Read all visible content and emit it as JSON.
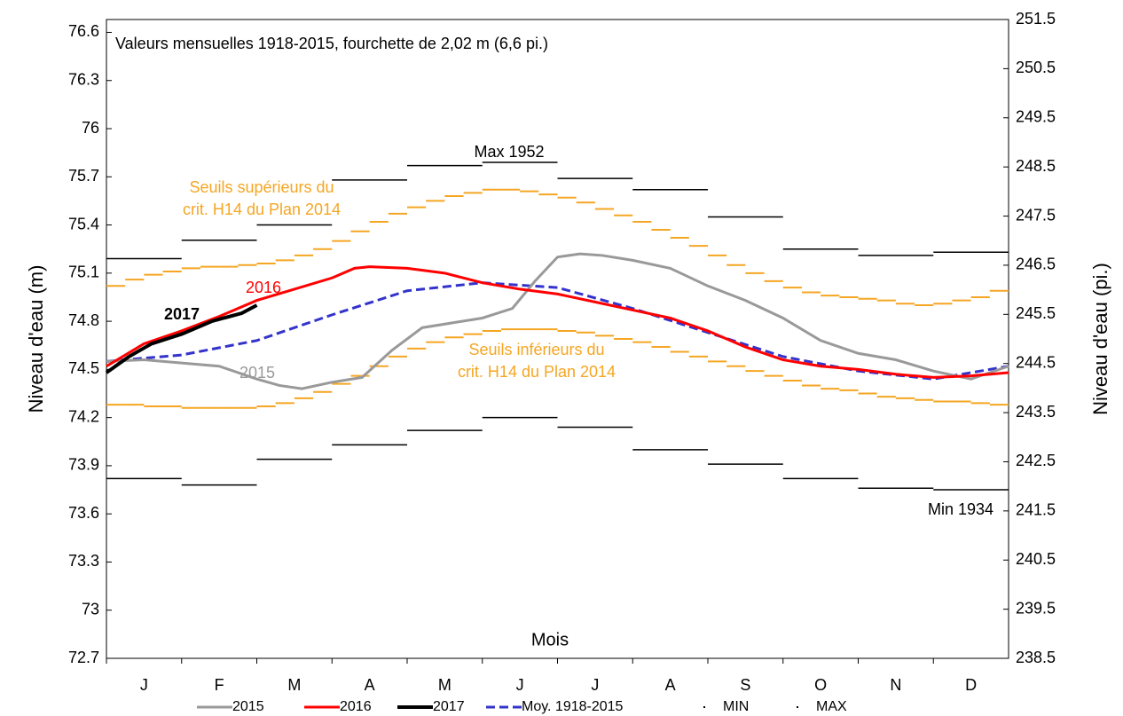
{
  "chart_data": {
    "type": "line",
    "subtitle": "Valeurs mensuelles 1918-2015, fourchette de 2,02 m (6,6 pi.)",
    "x_label": "Mois",
    "y_label": "Niveau d'eau (m)",
    "y2_label": "Niveau d'eau (pi.)",
    "categories": [
      "J",
      "F",
      "M",
      "A",
      "M",
      "J",
      "J",
      "A",
      "S",
      "O",
      "N",
      "D"
    ],
    "xlim": [
      0,
      12
    ],
    "ylim": [
      72.7,
      76.68
    ],
    "yticks": [
      72.7,
      73.0,
      73.3,
      73.6,
      73.9,
      74.2,
      74.5,
      74.8,
      75.1,
      75.4,
      75.7,
      76.0,
      76.3,
      76.6
    ],
    "y2lim": [
      238.5,
      251.5
    ],
    "y2ticks": [
      238.5,
      239.5,
      240.5,
      241.5,
      242.5,
      243.5,
      244.5,
      245.5,
      246.5,
      247.5,
      248.5,
      249.5,
      250.5,
      251.5
    ],
    "series": [
      {
        "name": "2015",
        "color": "#999999",
        "style": "solid",
        "x": [
          0,
          0.5,
          1,
          1.5,
          2,
          2.3,
          2.6,
          3,
          3.4,
          3.8,
          4.2,
          4.6,
          5,
          5.4,
          5.7,
          6,
          6.3,
          6.6,
          7,
          7.5,
          8,
          8.5,
          9,
          9.5,
          10,
          10.5,
          11,
          11.5,
          12
        ],
        "values": [
          74.55,
          74.56,
          74.54,
          74.52,
          74.44,
          74.4,
          74.38,
          74.42,
          74.45,
          74.62,
          74.76,
          74.79,
          74.82,
          74.88,
          75.05,
          75.2,
          75.22,
          75.21,
          75.18,
          75.13,
          75.02,
          74.93,
          74.82,
          74.68,
          74.6,
          74.56,
          74.49,
          74.44,
          74.52
        ]
      },
      {
        "name": "2016",
        "color": "#ff0000",
        "style": "solid",
        "x": [
          0,
          0.5,
          1,
          1.5,
          2,
          2.5,
          3,
          3.3,
          3.5,
          4,
          4.5,
          5,
          5.5,
          6,
          6.5,
          7,
          7.5,
          8,
          8.5,
          9,
          9.5,
          10,
          10.5,
          11,
          11.5,
          12
        ],
        "values": [
          74.52,
          74.66,
          74.74,
          74.83,
          74.93,
          75.0,
          75.07,
          75.13,
          75.14,
          75.13,
          75.1,
          75.04,
          75.0,
          74.97,
          74.92,
          74.87,
          74.82,
          74.74,
          74.64,
          74.56,
          74.52,
          74.5,
          74.47,
          74.45,
          74.46,
          74.48
        ]
      },
      {
        "name": "2017",
        "color": "#000000",
        "style": "bold",
        "x": [
          0,
          0.3,
          0.6,
          1,
          1.4,
          1.8,
          2
        ],
        "values": [
          74.48,
          74.58,
          74.66,
          74.72,
          74.8,
          74.85,
          74.9
        ]
      },
      {
        "name": "Moy. 1918-2015",
        "color": "#3333cc",
        "style": "dashed",
        "x": [
          0,
          1,
          2,
          3,
          4,
          5,
          6,
          7,
          8,
          9,
          10,
          11,
          12
        ],
        "values": [
          74.55,
          74.59,
          74.68,
          74.84,
          74.99,
          75.04,
          75.01,
          74.88,
          74.73,
          74.58,
          74.49,
          74.44,
          74.52
        ]
      },
      {
        "name": "MIN",
        "color": "#000000",
        "style": "steps",
        "values": [
          73.82,
          73.78,
          73.94,
          74.03,
          74.12,
          74.2,
          74.14,
          74.0,
          73.91,
          73.82,
          73.76,
          73.75
        ]
      },
      {
        "name": "MAX",
        "color": "#000000",
        "style": "steps",
        "values": [
          75.19,
          75.305,
          75.4,
          75.68,
          75.77,
          75.79,
          75.69,
          75.62,
          75.45,
          75.25,
          75.21,
          75.23
        ]
      }
    ],
    "thresholds": [
      {
        "color": "#f5a623",
        "values": [
          75.02,
          75.06,
          75.09,
          75.11,
          75.13,
          75.14,
          75.14,
          75.15,
          75.16,
          75.18,
          75.21,
          75.25,
          75.3,
          75.36,
          75.42,
          75.47,
          75.51,
          75.55,
          75.58,
          75.6,
          75.62,
          75.62,
          75.61,
          75.59,
          75.57,
          75.54,
          75.5,
          75.46,
          75.42,
          75.37,
          75.32,
          75.27,
          75.21,
          75.15,
          75.1,
          75.05,
          75.01,
          74.98,
          74.96,
          74.95,
          74.94,
          74.93,
          74.91,
          74.9,
          74.91,
          74.93,
          74.95,
          74.99
        ]
      },
      {
        "color": "#f5a623",
        "values": [
          74.28,
          74.28,
          74.27,
          74.27,
          74.26,
          74.26,
          74.26,
          74.26,
          74.27,
          74.29,
          74.32,
          74.36,
          74.41,
          74.46,
          74.52,
          74.58,
          74.63,
          74.67,
          74.7,
          74.72,
          74.74,
          74.75,
          74.75,
          74.75,
          74.74,
          74.73,
          74.71,
          74.69,
          74.67,
          74.64,
          74.61,
          74.58,
          74.55,
          74.52,
          74.49,
          74.46,
          74.43,
          74.4,
          74.38,
          74.37,
          74.35,
          74.33,
          74.32,
          74.31,
          74.3,
          74.3,
          74.29,
          74.28
        ]
      }
    ],
    "annotations": [
      {
        "text": "Seuils supérieurs du",
        "color": "#f5a623"
      },
      {
        "text": "crit. H14 du Plan 2014",
        "color": "#f5a623"
      },
      {
        "text": "Seuils inférieurs du",
        "color": "#f5a623"
      },
      {
        "text": "crit. H14 du Plan 2014",
        "color": "#f5a623"
      },
      {
        "text": "Max 1952",
        "color": "#000000"
      },
      {
        "text": "Min 1934",
        "color": "#000000"
      },
      {
        "text": "2016",
        "color": "#ff0000"
      },
      {
        "text": "2017",
        "color": "#000000"
      },
      {
        "text": "2015",
        "color": "#999999"
      }
    ]
  }
}
